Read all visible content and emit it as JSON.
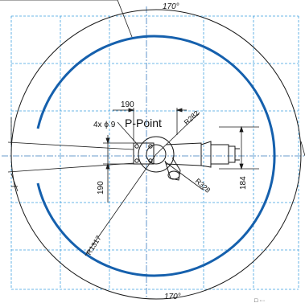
{
  "diagram": {
    "angle_top": "170°",
    "angle_bottom": "170°",
    "dim_base_width": "190",
    "dim_base_height": "190",
    "hole_spec": "4x ϕ 9",
    "p_point": "P-Point",
    "r_inner": "R282",
    "r_side": "R328",
    "r_work": "R1317",
    "dim_wrist": "184",
    "corner_fragment": "□ ···",
    "colors": {
      "work_arc": "#1560ad",
      "grid": "#3ea0df",
      "outline": "#1a1a1a"
    }
  }
}
